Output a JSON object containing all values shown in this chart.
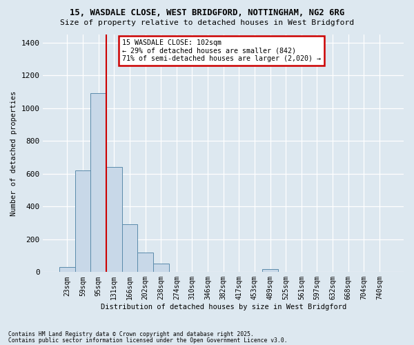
{
  "title_line1": "15, WASDALE CLOSE, WEST BRIDGFORD, NOTTINGHAM, NG2 6RG",
  "title_line2": "Size of property relative to detached houses in West Bridgford",
  "xlabel": "Distribution of detached houses by size in West Bridgford",
  "ylabel": "Number of detached properties",
  "bins": [
    "23sqm",
    "59sqm",
    "95sqm",
    "131sqm",
    "166sqm",
    "202sqm",
    "238sqm",
    "274sqm",
    "310sqm",
    "346sqm",
    "382sqm",
    "417sqm",
    "453sqm",
    "489sqm",
    "525sqm",
    "561sqm",
    "597sqm",
    "632sqm",
    "668sqm",
    "704sqm",
    "740sqm"
  ],
  "bar_heights": [
    30,
    620,
    1090,
    640,
    290,
    120,
    50,
    0,
    0,
    0,
    0,
    0,
    0,
    20,
    0,
    0,
    0,
    0,
    0,
    0,
    0
  ],
  "bar_color": "#c8d8e8",
  "bar_edge_color": "#5a8aaa",
  "property_line_x": 2.5,
  "annotation_text": "15 WASDALE CLOSE: 102sqm\n← 29% of detached houses are smaller (842)\n71% of semi-detached houses are larger (2,020) →",
  "annotation_box_facecolor": "#ffffff",
  "annotation_border_color": "#cc0000",
  "property_line_color": "#cc0000",
  "ylim": [
    0,
    1450
  ],
  "yticks": [
    0,
    200,
    400,
    600,
    800,
    1000,
    1200,
    1400
  ],
  "footer_line1": "Contains HM Land Registry data © Crown copyright and database right 2025.",
  "footer_line2": "Contains public sector information licensed under the Open Government Licence v3.0.",
  "background_color": "#dde8f0",
  "plot_background_color": "#dde8f0"
}
